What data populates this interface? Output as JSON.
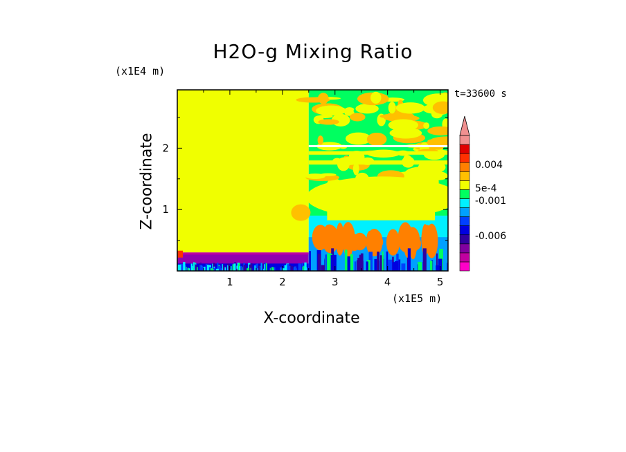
{
  "chart_data": {
    "type": "heatmap",
    "title": "H2O-g Mixing Ratio",
    "xlabel": "X-coordinate",
    "ylabel": "Z-coordinate",
    "x_unit": "(x1E5 m)",
    "y_unit": "(x1E4 m)",
    "time_label": "t=33600 s",
    "xlim": [
      0,
      5.15
    ],
    "ylim": [
      0,
      2.95
    ],
    "x_ticks": [
      1,
      2,
      3,
      4,
      5
    ],
    "y_ticks": [
      1,
      2
    ],
    "colorbar": {
      "labels": [
        "0.004",
        "5e-4",
        "-0.001",
        "-0.006"
      ],
      "colors": [
        "#ff00c8",
        "#c000a0",
        "#8000a0",
        "#3000a0",
        "#0000e0",
        "#0040ff",
        "#00a0ff",
        "#00f0ff",
        "#00ff60",
        "#f0ff00",
        "#ffc000",
        "#ff8000",
        "#ff3000",
        "#e00000",
        "#f09090"
      ],
      "extend": "max"
    },
    "regions": [
      {
        "x": [
          0,
          2.5
        ],
        "z": [
          0.3,
          2.95
        ],
        "level": "5e-4",
        "color": "#f0ff00"
      },
      {
        "x": [
          0,
          2.5
        ],
        "z": [
          0.05,
          0.3
        ],
        "level": "-0.006",
        "color": "#9000b0"
      },
      {
        "x": [
          2.5,
          5.15
        ],
        "z": [
          0.9,
          2.95
        ],
        "level": "-0.001",
        "color": "#00ff60"
      },
      {
        "x": [
          2.5,
          5.15
        ],
        "z": [
          0,
          0.9
        ],
        "level": "mixed",
        "color": "#00f0ff"
      }
    ]
  }
}
